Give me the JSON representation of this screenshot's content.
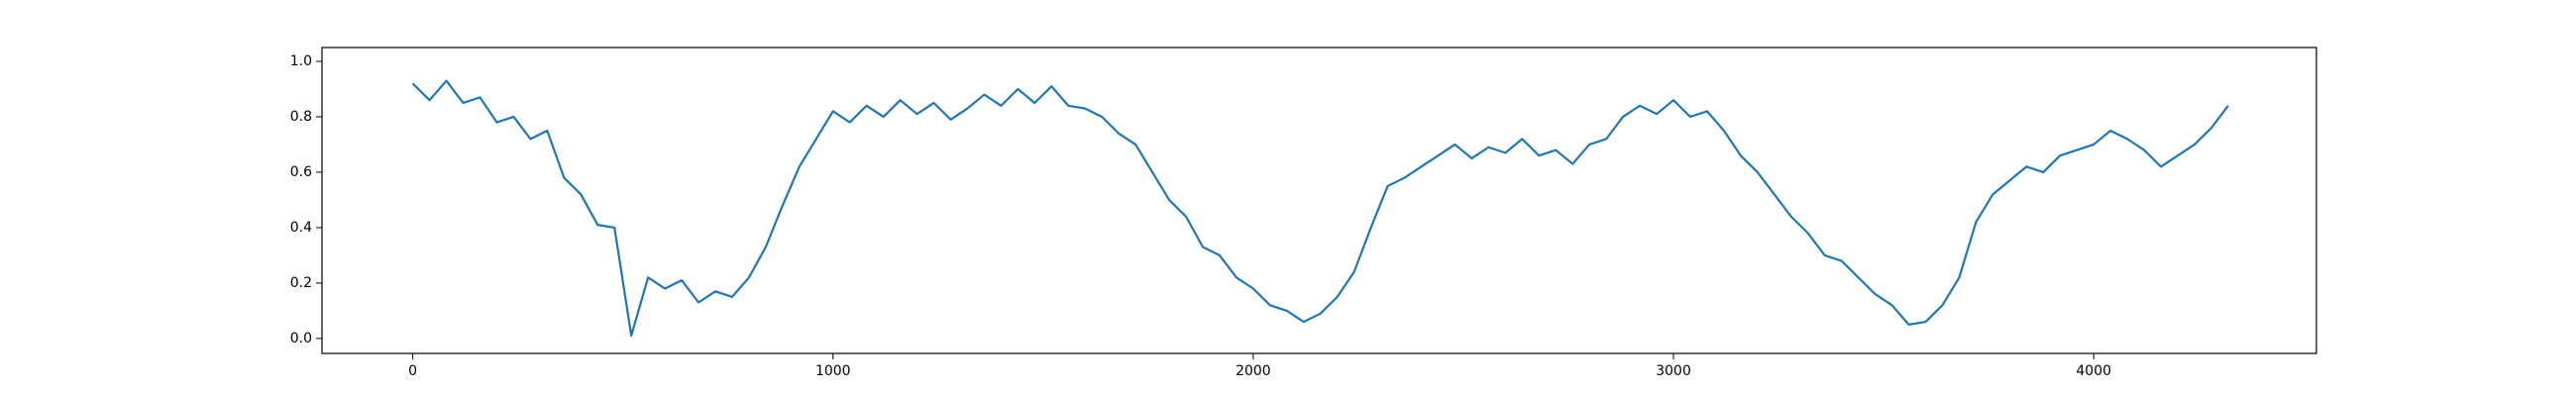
{
  "chart_data": {
    "type": "line",
    "x": [
      0,
      40,
      80,
      120,
      160,
      200,
      240,
      280,
      320,
      360,
      400,
      440,
      480,
      520,
      560,
      600,
      640,
      680,
      720,
      760,
      800,
      840,
      880,
      920,
      960,
      1000,
      1040,
      1080,
      1120,
      1160,
      1200,
      1240,
      1280,
      1320,
      1360,
      1400,
      1440,
      1480,
      1520,
      1560,
      1600,
      1640,
      1680,
      1720,
      1760,
      1800,
      1840,
      1880,
      1920,
      1960,
      2000,
      2040,
      2080,
      2120,
      2160,
      2200,
      2240,
      2280,
      2320,
      2360,
      2400,
      2440,
      2480,
      2520,
      2560,
      2600,
      2640,
      2680,
      2720,
      2760,
      2800,
      2840,
      2880,
      2920,
      2960,
      3000,
      3040,
      3080,
      3120,
      3160,
      3200,
      3240,
      3280,
      3320,
      3360,
      3400,
      3440,
      3480,
      3520,
      3560,
      3600,
      3640,
      3680,
      3720,
      3760,
      3800,
      3840,
      3880,
      3920,
      3960,
      4000,
      4040,
      4080,
      4120,
      4160,
      4200,
      4240,
      4280,
      4320
    ],
    "series": [
      {
        "color": "#1f77b4",
        "values": [
          0.92,
          0.86,
          0.93,
          0.85,
          0.87,
          0.78,
          0.8,
          0.72,
          0.75,
          0.58,
          0.52,
          0.41,
          0.4,
          0.01,
          0.22,
          0.18,
          0.21,
          0.13,
          0.17,
          0.15,
          0.22,
          0.33,
          0.48,
          0.62,
          0.72,
          0.82,
          0.78,
          0.84,
          0.8,
          0.86,
          0.81,
          0.85,
          0.79,
          0.83,
          0.88,
          0.84,
          0.9,
          0.85,
          0.91,
          0.84,
          0.83,
          0.8,
          0.74,
          0.7,
          0.6,
          0.5,
          0.44,
          0.33,
          0.3,
          0.22,
          0.18,
          0.12,
          0.1,
          0.06,
          0.09,
          0.15,
          0.24,
          0.4,
          0.55,
          0.58,
          0.62,
          0.66,
          0.7,
          0.65,
          0.69,
          0.67,
          0.72,
          0.66,
          0.68,
          0.63,
          0.7,
          0.72,
          0.8,
          0.84,
          0.81,
          0.86,
          0.8,
          0.82,
          0.75,
          0.66,
          0.6,
          0.52,
          0.44,
          0.38,
          0.3,
          0.28,
          0.22,
          0.16,
          0.12,
          0.05,
          0.06,
          0.12,
          0.22,
          0.42,
          0.52,
          0.57,
          0.62,
          0.6,
          0.66,
          0.68,
          0.7,
          0.75,
          0.72,
          0.68,
          0.62,
          0.66,
          0.7,
          0.76,
          0.84
        ]
      }
    ],
    "xlim": [
      -216,
      4530
    ],
    "ylim": [
      -0.054,
      1.05
    ],
    "xticks": [
      0,
      1000,
      2000,
      3000,
      4000
    ],
    "yticks": [
      {
        "value": 0,
        "label": "0.0"
      },
      0.2,
      0.4,
      0.6,
      0.8,
      {
        "value": 1,
        "label": "1.0"
      }
    ]
  }
}
